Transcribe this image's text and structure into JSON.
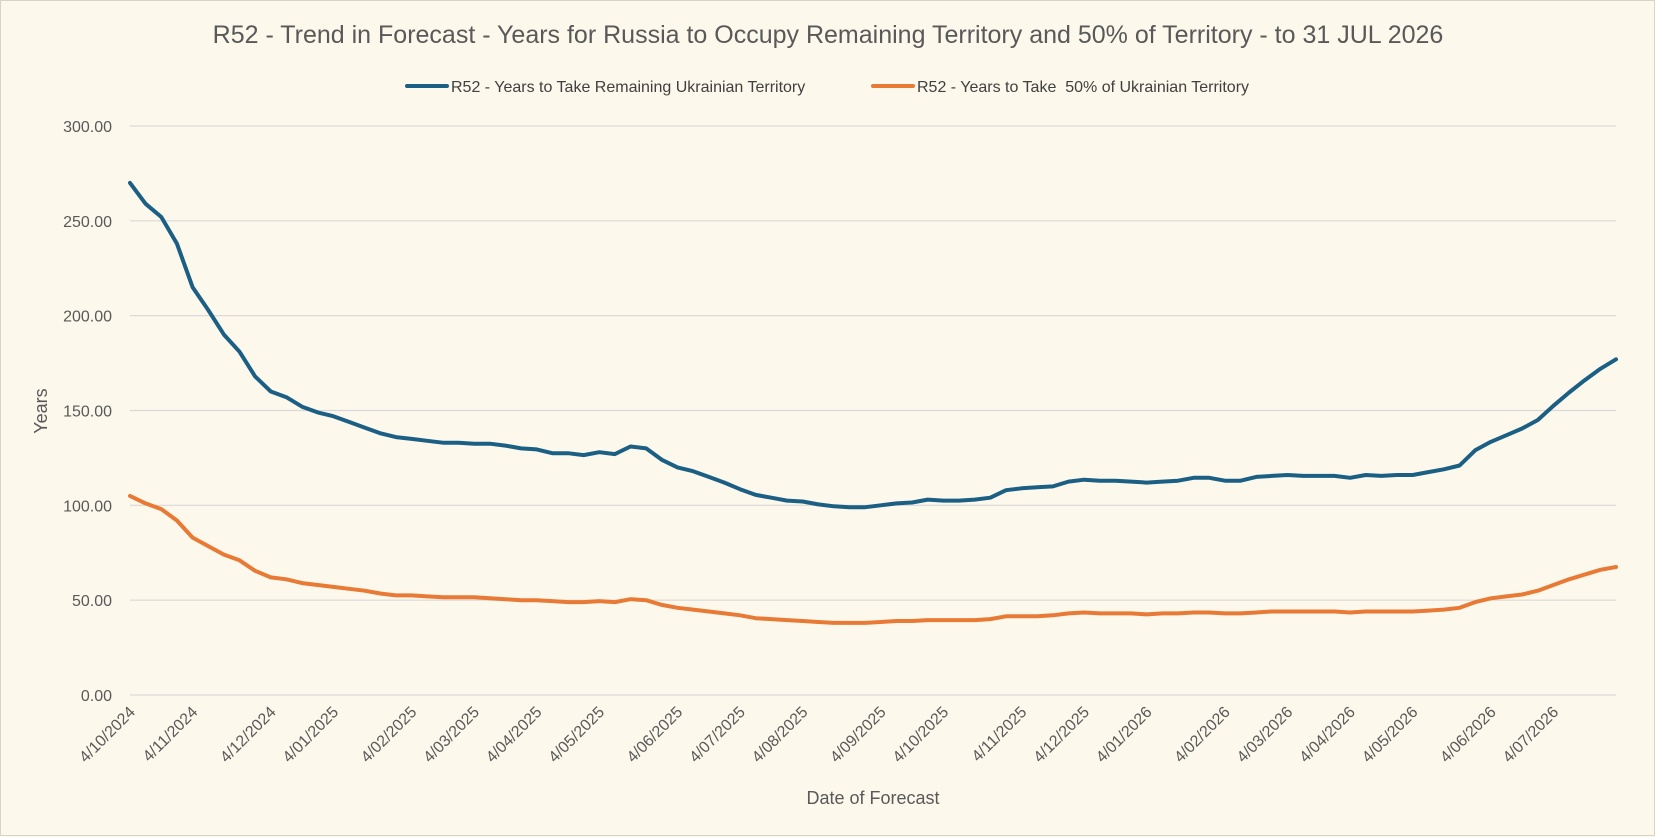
{
  "chart_data": {
    "type": "line",
    "title": "R52 - Trend in Forecast - Years for Russia to Occupy Remaining Territory and 50% of Territory - to 31 JUL 2026",
    "xlabel": "Date of Forecast",
    "ylabel": "Years",
    "ylim": [
      0,
      300
    ],
    "yticks": [
      "0.00",
      "50.00",
      "100.00",
      "150.00",
      "200.00",
      "250.00",
      "300.00"
    ],
    "xticks": [
      "4/10/2024",
      "4/11/2024",
      "4/12/2024",
      "4/01/2025",
      "4/02/2025",
      "4/03/2025",
      "4/04/2025",
      "4/05/2025",
      "4/06/2025",
      "4/07/2025",
      "4/08/2025",
      "4/09/2025",
      "4/10/2025",
      "4/11/2025",
      "4/12/2025",
      "4/01/2026",
      "4/02/2026",
      "4/03/2026",
      "4/04/2026",
      "4/05/2026",
      "4/06/2026",
      "4/07/2026"
    ],
    "grid": true,
    "legend_position": "top",
    "x": [
      "4/10/2024",
      "11/10/2024",
      "18/10/2024",
      "25/10/2024",
      "1/11/2024",
      "8/11/2024",
      "15/11/2024",
      "22/11/2024",
      "29/11/2024",
      "6/12/2024",
      "13/12/2024",
      "20/12/2024",
      "27/12/2024",
      "3/01/2025",
      "10/01/2025",
      "17/01/2025",
      "24/01/2025",
      "31/01/2025",
      "7/02/2025",
      "14/02/2025",
      "21/02/2025",
      "28/02/2025",
      "7/03/2025",
      "14/03/2025",
      "21/03/2025",
      "28/03/2025",
      "4/04/2025",
      "11/04/2025",
      "18/04/2025",
      "25/04/2025",
      "2/05/2025",
      "9/05/2025",
      "16/05/2025",
      "23/05/2025",
      "30/05/2025",
      "6/06/2025",
      "13/06/2025",
      "20/06/2025",
      "27/06/2025",
      "4/07/2025",
      "11/07/2025",
      "18/07/2025",
      "25/07/2025",
      "1/08/2025",
      "8/08/2025",
      "15/08/2025",
      "22/08/2025",
      "29/08/2025",
      "5/09/2025",
      "12/09/2025",
      "19/09/2025",
      "26/09/2025",
      "3/10/2025",
      "10/10/2025",
      "17/10/2025",
      "24/10/2025",
      "31/10/2025",
      "7/11/2025",
      "14/11/2025",
      "21/11/2025",
      "28/11/2025",
      "5/12/2025",
      "12/12/2025",
      "19/12/2025",
      "26/12/2025",
      "2/01/2026",
      "9/01/2026",
      "16/01/2026",
      "23/01/2026",
      "30/01/2026",
      "6/02/2026",
      "13/02/2026",
      "20/02/2026",
      "27/02/2026",
      "6/03/2026",
      "13/03/2026",
      "20/03/2026",
      "27/03/2026",
      "3/04/2026",
      "10/04/2026",
      "17/04/2026",
      "24/04/2026",
      "1/05/2026",
      "8/05/2026",
      "15/05/2026",
      "22/05/2026",
      "29/05/2026",
      "5/06/2026",
      "12/06/2026",
      "19/06/2026",
      "26/06/2026",
      "3/07/2026",
      "10/07/2026",
      "17/07/2026",
      "24/07/2026",
      "31/07/2026"
    ],
    "series": [
      {
        "name": "R52 - Years to Take Remaining Ukrainian Territory",
        "color": "#1b5f84",
        "values": [
          270,
          259,
          252,
          238,
          215,
          203,
          190,
          181,
          168,
          160,
          157,
          152,
          149,
          147,
          144,
          141,
          138,
          136,
          135,
          134,
          133,
          133,
          132.5,
          132.5,
          131.5,
          130,
          129.5,
          127.5,
          127.5,
          126.5,
          128,
          127,
          131,
          130,
          124,
          120,
          118,
          115,
          112,
          108.5,
          105.5,
          104,
          102.5,
          102,
          100.5,
          99.5,
          99,
          99,
          100,
          101,
          101.5,
          103,
          102.5,
          102.5,
          103,
          104,
          108,
          109,
          109.5,
          110,
          112.5,
          113.5,
          113,
          113,
          112.5,
          112,
          112.5,
          113,
          114.5,
          114.5,
          113,
          113,
          115,
          115.5,
          116,
          115.5,
          115.5,
          115.5,
          114.5,
          116,
          115.5,
          116,
          116,
          117.5,
          119,
          121,
          129,
          133.5,
          137,
          140.5,
          145,
          152.5,
          159.5,
          166,
          172,
          177
        ]
      },
      {
        "name": "R52 - Years to Take  50% of Ukrainian Territory",
        "color": "#e87a35",
        "values": [
          105,
          101,
          98,
          92,
          83,
          78.5,
          74,
          71,
          65.5,
          62,
          61,
          59,
          58,
          57,
          56,
          55,
          53.5,
          52.5,
          52.5,
          52,
          51.5,
          51.5,
          51.5,
          51,
          50.5,
          50,
          50,
          49.5,
          49,
          49,
          49.5,
          49,
          50.5,
          50,
          47.5,
          46,
          45,
          44,
          43,
          42,
          40.5,
          40,
          39.5,
          39,
          38.5,
          38,
          38,
          38,
          38.5,
          39,
          39,
          39.5,
          39.5,
          39.5,
          39.5,
          40,
          41.5,
          41.5,
          41.5,
          42,
          43,
          43.5,
          43,
          43,
          43,
          42.5,
          43,
          43,
          43.5,
          43.5,
          43,
          43,
          43.5,
          44,
          44,
          44,
          44,
          44,
          43.5,
          44,
          44,
          44,
          44,
          44.5,
          45,
          46,
          49,
          51,
          52,
          53,
          55,
          58,
          61,
          63.5,
          66,
          67.5
        ]
      }
    ]
  }
}
